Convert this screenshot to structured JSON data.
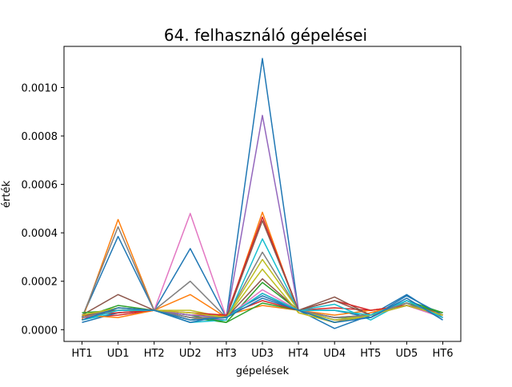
{
  "chart_data": {
    "type": "line",
    "title": "64. felhasználó gépelései",
    "xlabel": "gépelések",
    "ylabel": "érték",
    "categories": [
      "HT1",
      "UD1",
      "HT2",
      "UD2",
      "HT3",
      "UD3",
      "HT4",
      "UD4",
      "HT5",
      "UD5",
      "HT6"
    ],
    "ylim": [
      -4.85e-05,
      0.00117
    ],
    "yticks": [
      0.0,
      0.0002,
      0.0004,
      0.0006,
      0.0008,
      0.001
    ],
    "ytick_labels": [
      "0.0000",
      "0.0002",
      "0.0004",
      "0.0006",
      "0.0008",
      "0.0010"
    ],
    "grid": false,
    "legend": "none",
    "series": [
      {
        "color": "#1f77b4",
        "values": [
          5e-05,
          0.000385,
          8e-05,
          0.000335,
          5e-05,
          0.00112,
          8e-05,
          5e-06,
          6e-05,
          0.000145,
          5e-05
        ]
      },
      {
        "color": "#ff7f0e",
        "values": [
          4e-05,
          0.000455,
          8e-05,
          0.000145,
          5e-05,
          0.000485,
          7e-05,
          3e-05,
          7e-05,
          0.00011,
          6e-05
        ]
      },
      {
        "color": "#2ca02c",
        "values": [
          5e-05,
          0.0001,
          8e-05,
          5e-05,
          3e-05,
          0.000195,
          8e-05,
          5e-05,
          5e-05,
          0.00012,
          7e-05
        ]
      },
      {
        "color": "#d62728",
        "values": [
          5e-05,
          6e-05,
          8e-05,
          6e-05,
          6e-05,
          0.000465,
          8e-05,
          9e-05,
          8e-05,
          0.0001,
          6e-05
        ]
      },
      {
        "color": "#9467bd",
        "values": [
          5e-05,
          8e-05,
          8e-05,
          5e-05,
          4e-05,
          0.000885,
          8e-05,
          4e-05,
          5e-05,
          0.00012,
          5e-05
        ]
      },
      {
        "color": "#8c564b",
        "values": [
          6e-05,
          0.000145,
          8e-05,
          4e-05,
          5e-05,
          0.00021,
          8e-05,
          0.000135,
          6e-05,
          0.0001,
          7e-05
        ]
      },
      {
        "color": "#e377c2",
        "values": [
          5e-05,
          8e-05,
          8e-05,
          0.00048,
          5e-05,
          0.000165,
          8e-05,
          5e-05,
          6e-05,
          0.0001,
          5e-05
        ]
      },
      {
        "color": "#7f7f7f",
        "values": [
          5e-05,
          0.000425,
          8e-05,
          0.0002,
          5e-05,
          0.00032,
          8e-05,
          4e-05,
          6e-05,
          0.00011,
          5e-05
        ]
      },
      {
        "color": "#bcbd22",
        "values": [
          6e-05,
          9e-05,
          8e-05,
          8e-05,
          5e-05,
          0.00029,
          8e-05,
          4e-05,
          6e-05,
          0.0001,
          6e-05
        ]
      },
      {
        "color": "#17becf",
        "values": [
          4e-05,
          7e-05,
          8e-05,
          3e-05,
          4e-05,
          0.000375,
          8e-05,
          0.000105,
          4e-05,
          0.00012,
          5e-05
        ]
      },
      {
        "color": "#1f77b4",
        "values": [
          3e-05,
          7e-05,
          8e-05,
          3e-05,
          6e-05,
          0.00014,
          8e-05,
          8e-05,
          5e-05,
          0.00014,
          6e-05
        ]
      },
      {
        "color": "#ff7f0e",
        "values": [
          6e-05,
          5e-05,
          8e-05,
          4e-05,
          6e-05,
          0.0001,
          8e-05,
          6e-05,
          8e-05,
          0.0001,
          6e-05
        ]
      },
      {
        "color": "#2ca02c",
        "values": [
          7e-05,
          8e-05,
          8e-05,
          6e-05,
          3e-05,
          0.00011,
          8e-05,
          3e-05,
          6e-05,
          0.00011,
          7e-05
        ]
      },
      {
        "color": "#d62728",
        "values": [
          6e-05,
          7e-05,
          8e-05,
          7e-05,
          6e-05,
          0.00012,
          8e-05,
          0.00012,
          8e-05,
          0.0001,
          6e-05
        ]
      },
      {
        "color": "#9467bd",
        "values": [
          5e-05,
          9e-05,
          8e-05,
          6e-05,
          5e-05,
          0.00015,
          8e-05,
          5e-05,
          6e-05,
          0.00012,
          5e-05
        ]
      },
      {
        "color": "#8c564b",
        "values": [
          6e-05,
          8e-05,
          8e-05,
          5e-05,
          5e-05,
          0.00045,
          8e-05,
          0.00012,
          6e-05,
          0.0001,
          6e-05
        ]
      },
      {
        "color": "#7f7f7f",
        "values": [
          5e-05,
          9e-05,
          8e-05,
          5e-05,
          5e-05,
          0.00015,
          8e-05,
          5e-05,
          6e-05,
          0.00011,
          5e-05
        ]
      },
      {
        "color": "#bcbd22",
        "values": [
          6e-05,
          9e-05,
          8e-05,
          7e-05,
          5e-05,
          0.00025,
          7e-05,
          3e-05,
          6e-05,
          0.0001,
          6e-05
        ]
      },
      {
        "color": "#17becf",
        "values": [
          4e-05,
          8e-05,
          8e-05,
          4e-05,
          5e-05,
          0.00015,
          8e-05,
          8e-05,
          6e-05,
          0.00012,
          5e-05
        ]
      },
      {
        "color": "#1f77b4",
        "values": [
          4e-05,
          9e-05,
          8e-05,
          4e-05,
          5e-05,
          0.00013,
          8e-05,
          3e-05,
          5e-05,
          0.00013,
          4e-05
        ]
      }
    ]
  }
}
